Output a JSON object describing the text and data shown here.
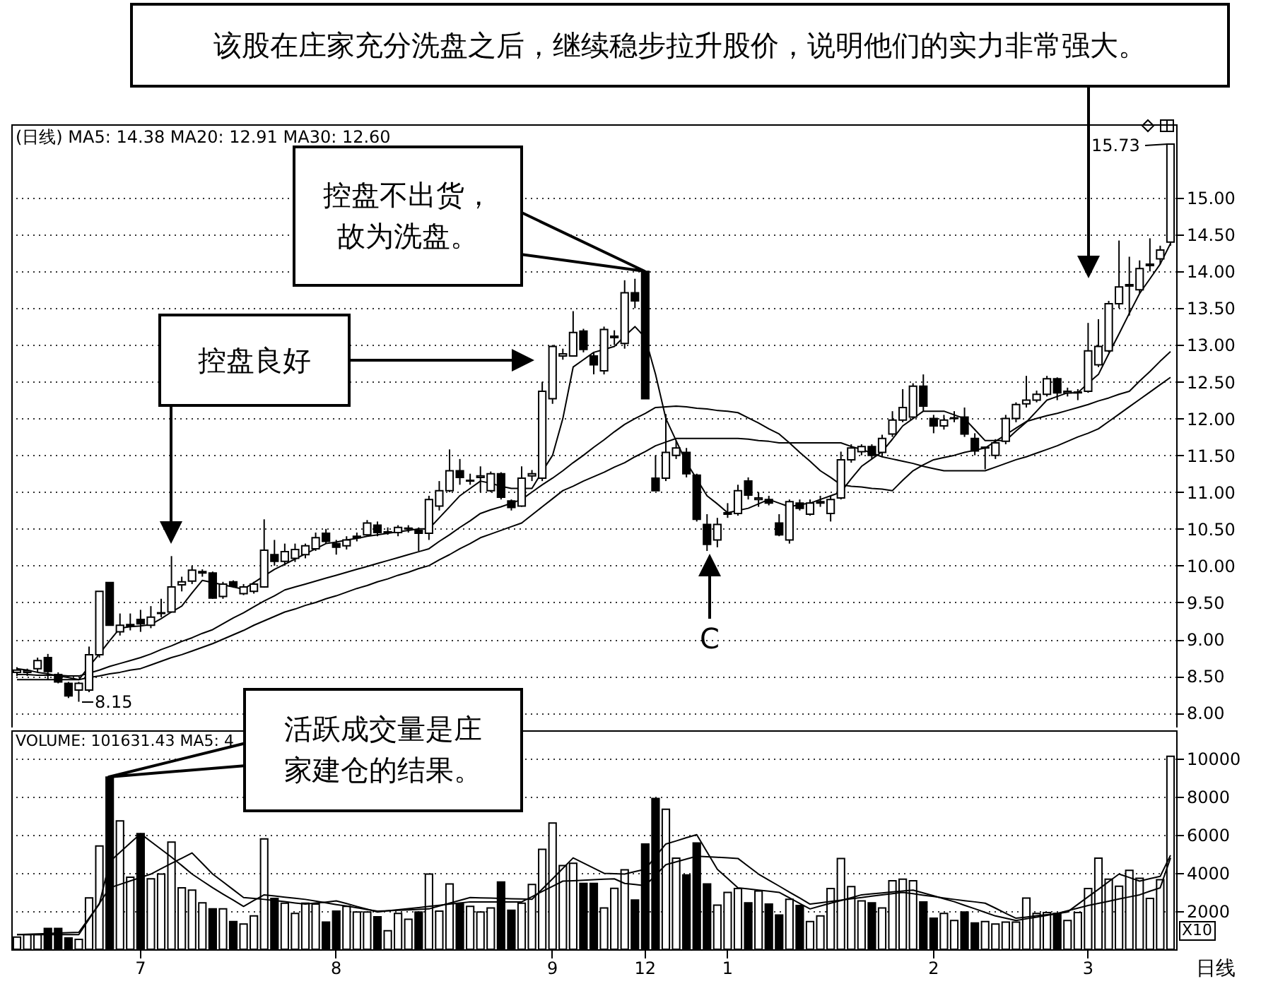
{
  "chart_data": [
    {
      "type": "candlestick",
      "title": "(日线) MA5: 14.38 MA20: 12.91 MA30: 12.60",
      "color": "#000000",
      "categories": [
        null,
        null,
        null,
        null,
        null,
        null,
        null,
        null,
        null,
        null,
        null,
        null,
        "7",
        null,
        null,
        null,
        null,
        null,
        null,
        null,
        null,
        null,
        null,
        null,
        null,
        null,
        null,
        null,
        null,
        null,
        null,
        "8",
        null,
        null,
        null,
        null,
        null,
        null,
        null,
        null,
        null,
        null,
        null,
        null,
        null,
        null,
        null,
        null,
        null,
        null,
        null,
        null,
        "9",
        null,
        null,
        null,
        null,
        null,
        null,
        null,
        null,
        "12",
        null,
        null,
        null,
        null,
        null,
        null,
        null,
        "1",
        null,
        null,
        null,
        null,
        null,
        null,
        null,
        null,
        null,
        null,
        null,
        null,
        null,
        null,
        null,
        null,
        null,
        null,
        null,
        "2",
        null,
        null,
        null,
        null,
        null,
        null,
        null,
        null,
        null,
        null,
        null,
        null,
        null,
        null,
        "3",
        null,
        null,
        null,
        null,
        null,
        null,
        null,
        null
      ],
      "tick_labels": "y",
      "ylim": [
        7.8,
        16.0
      ],
      "yticks": [
        {
          "value": 8,
          "label": "8.00"
        },
        {
          "value": 8.5,
          "label": "8.50"
        },
        {
          "value": 9,
          "label": "9.00"
        },
        {
          "value": 9.5,
          "label": "9.50"
        },
        {
          "value": 10,
          "label": "10.00"
        },
        {
          "value": 10.5,
          "label": "10.50"
        },
        {
          "value": 11,
          "label": "11.00"
        },
        {
          "value": 11.5,
          "label": "11.50"
        },
        {
          "value": 12,
          "label": "12.00"
        },
        {
          "value": 12.5,
          "label": "12.50"
        },
        {
          "value": 13,
          "label": "13.00"
        },
        {
          "value": 13.5,
          "label": "13.50"
        },
        {
          "value": 14,
          "label": "14.00"
        },
        {
          "value": 14.5,
          "label": "14.50"
        },
        {
          "value": 15,
          "label": "15.00"
        }
      ],
      "grid": "y",
      "ohlc": [
        [
          8.55,
          8.62,
          8.5,
          8.58
        ],
        [
          8.55,
          8.6,
          8.5,
          8.57
        ],
        [
          8.6,
          8.75,
          8.55,
          8.71
        ],
        [
          8.75,
          8.8,
          8.45,
          8.56
        ],
        [
          8.52,
          8.55,
          8.4,
          8.42
        ],
        [
          8.4,
          8.42,
          8.2,
          8.23
        ],
        [
          8.31,
          8.42,
          8.15,
          8.4
        ],
        [
          8.31,
          8.9,
          8.28,
          8.79
        ],
        [
          8.79,
          9.65,
          8.75,
          9.65
        ],
        [
          9.77,
          9.77,
          9.19,
          9.19
        ],
        [
          9.1,
          9.35,
          9.05,
          9.19
        ],
        [
          9.18,
          9.35,
          9.12,
          9.2
        ],
        [
          9.27,
          9.4,
          9.1,
          9.21
        ],
        [
          9.19,
          9.45,
          9.15,
          9.3
        ],
        [
          9.35,
          9.55,
          9.3,
          9.36
        ],
        [
          9.37,
          10.13,
          9.37,
          9.71
        ],
        [
          9.74,
          9.85,
          9.65,
          9.78
        ],
        [
          9.79,
          10.0,
          9.75,
          9.94
        ],
        [
          9.9,
          9.95,
          9.85,
          9.92
        ],
        [
          9.9,
          9.92,
          9.55,
          9.56
        ],
        [
          9.58,
          9.78,
          9.55,
          9.75
        ],
        [
          9.78,
          9.8,
          9.7,
          9.72
        ],
        [
          9.62,
          9.75,
          9.6,
          9.71
        ],
        [
          9.65,
          9.78,
          9.62,
          9.75
        ],
        [
          9.71,
          10.63,
          9.7,
          10.21
        ],
        [
          10.15,
          10.35,
          10.0,
          10.06
        ],
        [
          10.06,
          10.3,
          10.0,
          10.19
        ],
        [
          10.1,
          10.3,
          10.05,
          10.22
        ],
        [
          10.15,
          10.3,
          10.1,
          10.27
        ],
        [
          10.23,
          10.45,
          10.2,
          10.38
        ],
        [
          10.44,
          10.5,
          10.3,
          10.33
        ],
        [
          10.3,
          10.35,
          10.15,
          10.25
        ],
        [
          10.27,
          10.4,
          10.22,
          10.35
        ],
        [
          10.38,
          10.45,
          10.33,
          10.4
        ],
        [
          10.42,
          10.62,
          10.4,
          10.58
        ],
        [
          10.55,
          10.6,
          10.4,
          10.45
        ],
        [
          10.45,
          10.52,
          10.42,
          10.46
        ],
        [
          10.45,
          10.55,
          10.4,
          10.52
        ],
        [
          10.5,
          10.55,
          10.45,
          10.51
        ],
        [
          10.48,
          10.52,
          10.2,
          10.44
        ],
        [
          10.44,
          10.95,
          10.35,
          10.9
        ],
        [
          10.81,
          11.15,
          10.75,
          11.02
        ],
        [
          11.02,
          11.58,
          11.0,
          11.29
        ],
        [
          11.29,
          11.45,
          11.1,
          11.2
        ],
        [
          11.15,
          11.25,
          11.1,
          11.16
        ],
        [
          11.2,
          11.35,
          11.0,
          11.22
        ],
        [
          11.02,
          11.28,
          11.0,
          11.25
        ],
        [
          11.25,
          11.27,
          10.9,
          10.93
        ],
        [
          10.88,
          10.9,
          10.75,
          10.79
        ],
        [
          10.81,
          11.35,
          10.8,
          11.19
        ],
        [
          11.22,
          11.3,
          11.15,
          11.25
        ],
        [
          11.19,
          12.5,
          11.15,
          12.37
        ],
        [
          12.27,
          13.0,
          12.2,
          12.98
        ],
        [
          12.85,
          12.95,
          12.8,
          12.88
        ],
        [
          12.85,
          13.46,
          12.85,
          13.17
        ],
        [
          13.19,
          13.22,
          12.9,
          12.94
        ],
        [
          12.85,
          12.9,
          12.6,
          12.73
        ],
        [
          12.65,
          13.25,
          12.6,
          13.21
        ],
        [
          13.1,
          13.2,
          13.0,
          13.12
        ],
        [
          13.02,
          13.88,
          12.95,
          13.71
        ],
        [
          13.71,
          13.9,
          13.5,
          13.6
        ],
        [
          14.0,
          14.0,
          12.27,
          12.27
        ],
        [
          11.19,
          11.5,
          11.02,
          11.02
        ],
        [
          11.19,
          12.06,
          11.15,
          11.54
        ],
        [
          11.5,
          11.7,
          11.45,
          11.6
        ],
        [
          11.54,
          11.6,
          11.2,
          11.25
        ],
        [
          11.23,
          11.25,
          10.6,
          10.63
        ],
        [
          10.56,
          10.7,
          10.2,
          10.29
        ],
        [
          10.35,
          10.65,
          10.25,
          10.56
        ],
        [
          10.7,
          10.85,
          10.65,
          10.72
        ],
        [
          10.71,
          11.1,
          10.68,
          11.02
        ],
        [
          11.15,
          11.2,
          10.9,
          10.96
        ],
        [
          10.9,
          11.0,
          10.8,
          10.92
        ],
        [
          10.9,
          10.95,
          10.82,
          10.85
        ],
        [
          10.58,
          10.7,
          10.4,
          10.42
        ],
        [
          10.35,
          10.9,
          10.3,
          10.87
        ],
        [
          10.85,
          10.9,
          10.75,
          10.78
        ],
        [
          10.7,
          10.9,
          10.68,
          10.85
        ],
        [
          10.85,
          10.95,
          10.8,
          10.87
        ],
        [
          10.71,
          10.95,
          10.6,
          10.9
        ],
        [
          10.92,
          11.55,
          10.9,
          11.44
        ],
        [
          11.44,
          11.65,
          11.4,
          11.6
        ],
        [
          11.55,
          11.65,
          11.5,
          11.62
        ],
        [
          11.62,
          11.65,
          11.45,
          11.5
        ],
        [
          11.54,
          11.78,
          11.48,
          11.73
        ],
        [
          11.79,
          12.1,
          11.75,
          11.98
        ],
        [
          11.98,
          12.4,
          11.95,
          12.15
        ],
        [
          12.02,
          12.48,
          12.0,
          12.44
        ],
        [
          12.44,
          12.6,
          12.1,
          12.17
        ],
        [
          12.0,
          12.05,
          11.8,
          11.9
        ],
        [
          11.9,
          12.05,
          11.85,
          11.98
        ],
        [
          12.0,
          12.1,
          11.95,
          12.01
        ],
        [
          12.02,
          12.15,
          11.75,
          11.79
        ],
        [
          11.73,
          11.8,
          11.5,
          11.56
        ],
        [
          11.6,
          11.62,
          11.31,
          11.61
        ],
        [
          11.5,
          11.72,
          11.45,
          11.67
        ],
        [
          11.69,
          12.05,
          11.65,
          12.0
        ],
        [
          12.0,
          12.22,
          11.95,
          12.19
        ],
        [
          12.2,
          12.58,
          12.15,
          12.25
        ],
        [
          12.25,
          12.38,
          12.22,
          12.33
        ],
        [
          12.33,
          12.58,
          12.3,
          12.54
        ],
        [
          12.54,
          12.56,
          12.25,
          12.35
        ],
        [
          12.35,
          12.42,
          12.3,
          12.37
        ],
        [
          12.35,
          12.4,
          12.25,
          12.36
        ],
        [
          12.37,
          13.3,
          12.35,
          12.92
        ],
        [
          12.73,
          13.35,
          12.7,
          12.98
        ],
        [
          12.92,
          13.6,
          12.9,
          13.56
        ],
        [
          13.56,
          14.42,
          13.5,
          13.79
        ],
        [
          13.8,
          14.2,
          13.4,
          13.82
        ],
        [
          13.75,
          14.15,
          13.7,
          14.04
        ],
        [
          14.08,
          14.45,
          14.0,
          14.1
        ],
        [
          14.17,
          14.35,
          14.1,
          14.29
        ],
        [
          14.4,
          15.73,
          14.35,
          15.73
        ]
      ],
      "series": [
        {
          "type": "line",
          "color": "#000000",
          "values": [
            8.6,
            8.58,
            8.55,
            8.53,
            8.5,
            8.48,
            8.45,
            8.63,
            8.8,
            8.98,
            9.15,
            9.17,
            9.18,
            9.2,
            9.28,
            9.37,
            9.45,
            9.63,
            9.8,
            9.77,
            9.74,
            9.71,
            9.68,
            9.77,
            9.86,
            9.95,
            10.02,
            10.09,
            10.16,
            10.23,
            10.3,
            10.32,
            10.35,
            10.37,
            10.4,
            10.42,
            10.44,
            10.46,
            10.48,
            10.5,
            10.5,
            10.65,
            10.8,
            10.95,
            11.05,
            11.15,
            11.12,
            11.08,
            11.05,
            11.05,
            11.05,
            11.28,
            11.5,
            12.0,
            12.7,
            12.8,
            12.9,
            12.94,
            12.98,
            13.12,
            13.25,
            13.1,
            12.6,
            12.0,
            11.7,
            11.4,
            11.18,
            10.95,
            10.84,
            10.72,
            10.75,
            10.78,
            10.84,
            10.9,
            10.85,
            10.8,
            10.83,
            10.85,
            10.9,
            10.95,
            11.0,
            11.18,
            11.35,
            11.45,
            11.55,
            11.72,
            11.9,
            12.0,
            12.1,
            12.1,
            12.1,
            12.05,
            12.0,
            11.85,
            11.7,
            11.7,
            11.7,
            11.83,
            11.95,
            12.1,
            12.25,
            12.3,
            12.35,
            12.35,
            12.48,
            12.6,
            12.88,
            13.15,
            13.43,
            13.7,
            13.9,
            14.1,
            14.38
          ]
        },
        {
          "type": "line",
          "color": "#000000",
          "values": [
            8.52,
            8.52,
            8.51,
            8.51,
            8.51,
            8.5,
            8.5,
            8.54,
            8.58,
            8.63,
            8.67,
            8.71,
            8.75,
            8.8,
            8.86,
            8.91,
            8.97,
            9.02,
            9.08,
            9.13,
            9.21,
            9.29,
            9.36,
            9.44,
            9.52,
            9.59,
            9.67,
            9.71,
            9.75,
            9.79,
            9.83,
            9.87,
            9.91,
            9.95,
            9.99,
            10.03,
            10.07,
            10.11,
            10.15,
            10.19,
            10.23,
            10.33,
            10.42,
            10.52,
            10.61,
            10.71,
            10.76,
            10.8,
            10.85,
            10.9,
            11.0,
            11.1,
            11.19,
            11.29,
            11.4,
            11.5,
            11.61,
            11.71,
            11.82,
            11.92,
            12.0,
            12.07,
            12.15,
            12.16,
            12.17,
            12.16,
            12.14,
            12.13,
            12.11,
            12.1,
            12.08,
            12.01,
            11.94,
            11.86,
            11.79,
            11.67,
            11.54,
            11.42,
            11.29,
            11.2,
            11.1,
            11.08,
            11.07,
            11.05,
            11.04,
            11.02,
            11.16,
            11.29,
            11.37,
            11.44,
            11.47,
            11.5,
            11.54,
            11.57,
            11.6,
            11.69,
            11.78,
            11.87,
            11.96,
            12.0,
            12.04,
            12.07,
            12.11,
            12.15,
            12.19,
            12.24,
            12.28,
            12.33,
            12.37,
            12.51,
            12.64,
            12.78,
            12.91
          ]
        },
        {
          "type": "line",
          "color": "#000000",
          "values": [
            8.45,
            8.45,
            8.45,
            8.45,
            8.45,
            8.45,
            8.45,
            8.48,
            8.5,
            8.53,
            8.55,
            8.58,
            8.6,
            8.65,
            8.7,
            8.75,
            8.79,
            8.84,
            8.89,
            8.94,
            9.0,
            9.06,
            9.12,
            9.19,
            9.25,
            9.31,
            9.37,
            9.41,
            9.46,
            9.5,
            9.55,
            9.59,
            9.64,
            9.69,
            9.73,
            9.78,
            9.82,
            9.87,
            9.91,
            9.96,
            10.0,
            10.08,
            10.15,
            10.23,
            10.3,
            10.38,
            10.43,
            10.48,
            10.53,
            10.58,
            10.69,
            10.8,
            10.91,
            11.02,
            11.08,
            11.15,
            11.21,
            11.27,
            11.34,
            11.4,
            11.48,
            11.55,
            11.63,
            11.68,
            11.73,
            11.73,
            11.73,
            11.73,
            11.73,
            11.73,
            11.73,
            11.72,
            11.7,
            11.69,
            11.67,
            11.67,
            11.67,
            11.67,
            11.67,
            11.67,
            11.67,
            11.62,
            11.58,
            11.53,
            11.48,
            11.45,
            11.42,
            11.39,
            11.35,
            11.32,
            11.29,
            11.29,
            11.29,
            11.29,
            11.29,
            11.34,
            11.39,
            11.44,
            11.48,
            11.53,
            11.58,
            11.63,
            11.69,
            11.75,
            11.8,
            11.86,
            11.96,
            12.06,
            12.16,
            12.26,
            12.36,
            12.46,
            12.56
          ]
        }
      ],
      "annotations": [
        "该股在庄家充分洗盘之后，继续稳步拉升股价，说明他们的实力非常强大。",
        "控盘不出货，故为洗盘。",
        "控盘良好",
        "C",
        "15.73",
        "8.15"
      ]
    },
    {
      "type": "bar",
      "title": "VOLUME: 101631.43 MA5: 4",
      "categories": [
        null,
        null,
        null,
        null,
        null,
        null,
        null,
        null,
        null,
        null,
        null,
        null,
        "7",
        null,
        null,
        null,
        null,
        null,
        null,
        null,
        null,
        null,
        null,
        null,
        null,
        null,
        null,
        null,
        null,
        null,
        null,
        "8",
        null,
        null,
        null,
        null,
        null,
        null,
        null,
        null,
        null,
        null,
        null,
        null,
        null,
        null,
        null,
        null,
        null,
        null,
        null,
        null,
        "9",
        null,
        null,
        null,
        null,
        null,
        null,
        null,
        null,
        "12",
        null,
        null,
        null,
        null,
        null,
        null,
        null,
        "1",
        null,
        null,
        null,
        null,
        null,
        null,
        null,
        null,
        null,
        null,
        null,
        null,
        null,
        null,
        null,
        null,
        null,
        null,
        null,
        "2",
        null,
        null,
        null,
        null,
        null,
        null,
        null,
        null,
        null,
        null,
        null,
        null,
        null,
        null,
        "3",
        null,
        null,
        null,
        null,
        null,
        null,
        null,
        null
      ],
      "ylim": [
        0,
        11500
      ],
      "yticks": [
        2000,
        4000,
        6000,
        8000,
        10000
      ],
      "grid": "y",
      "values": [
        640,
        770,
        770,
        1090,
        1090,
        590,
        520,
        2700,
        5430,
        9040,
        6740,
        3780,
        6070,
        3700,
        3950,
        5630,
        3230,
        3110,
        2440,
        2120,
        2120,
        1460,
        1330,
        1750,
        5800,
        2670,
        2420,
        1880,
        2420,
        2370,
        1430,
        2000,
        2250,
        1960,
        1960,
        1710,
        970,
        1880,
        1580,
        1960,
        3950,
        2000,
        3430,
        2370,
        2250,
        1960,
        2170,
        3530,
        2050,
        2420,
        3400,
        5250,
        6630,
        4400,
        4520,
        3460,
        3460,
        2170,
        3200,
        4170,
        2590,
        5530,
        7920,
        7350,
        4790,
        3900,
        5580,
        3430,
        2320,
        2990,
        3190,
        2440,
        3060,
        2370,
        1800,
        2620,
        2300,
        1460,
        1750,
        3190,
        4770,
        3290,
        2540,
        2440,
        2170,
        3600,
        3680,
        3600,
        2490,
        1630,
        1880,
        1510,
        1960,
        1380,
        1460,
        1330,
        1430,
        1430,
        2690,
        1880,
        1930,
        1880,
        1510,
        1930,
        3190,
        4790,
        3680,
        3310,
        4150,
        3730,
        2670,
        3650,
        10140
      ],
      "colors": [
        "#ffffff",
        "#ffffff",
        "#ffffff",
        "#000000",
        "#000000",
        "#000000",
        "#ffffff",
        "#ffffff",
        "#ffffff",
        "#000000",
        "#ffffff",
        "#ffffff",
        "#000000",
        "#ffffff",
        "#ffffff",
        "#ffffff",
        "#ffffff",
        "#ffffff",
        "#ffffff",
        "#000000",
        "#ffffff",
        "#000000",
        "#ffffff",
        "#ffffff",
        "#ffffff",
        "#000000",
        "#ffffff",
        "#ffffff",
        "#ffffff",
        "#ffffff",
        "#000000",
        "#000000",
        "#ffffff",
        "#ffffff",
        "#ffffff",
        "#000000",
        "#ffffff",
        "#ffffff",
        "#ffffff",
        "#000000",
        "#ffffff",
        "#ffffff",
        "#ffffff",
        "#000000",
        "#ffffff",
        "#ffffff",
        "#ffffff",
        "#000000",
        "#000000",
        "#ffffff",
        "#ffffff",
        "#ffffff",
        "#ffffff",
        "#ffffff",
        "#ffffff",
        "#000000",
        "#000000",
        "#ffffff",
        "#ffffff",
        "#ffffff",
        "#000000",
        "#000000",
        "#000000",
        "#ffffff",
        "#ffffff",
        "#000000",
        "#000000",
        "#000000",
        "#ffffff",
        "#ffffff",
        "#ffffff",
        "#000000",
        "#ffffff",
        "#000000",
        "#000000",
        "#ffffff",
        "#000000",
        "#ffffff",
        "#ffffff",
        "#ffffff",
        "#ffffff",
        "#ffffff",
        "#ffffff",
        "#000000",
        "#ffffff",
        "#ffffff",
        "#ffffff",
        "#ffffff",
        "#000000",
        "#000000",
        "#ffffff",
        "#ffffff",
        "#000000",
        "#000000",
        "#ffffff",
        "#ffffff",
        "#ffffff",
        "#ffffff",
        "#ffffff",
        "#ffffff",
        "#ffffff",
        "#000000",
        "#ffffff",
        "#ffffff",
        "#ffffff",
        "#ffffff",
        "#ffffff",
        "#ffffff",
        "#ffffff",
        "#ffffff",
        "#ffffff",
        "#ffffff",
        "#ffffff"
      ],
      "series": [
        {
          "type": "line",
          "color": "#000000",
          "values": [
            770,
            790,
            810,
            830,
            850,
            870,
            890,
            1640,
            2380,
            4600,
            5090,
            5580,
            6070,
            5660,
            5250,
            4840,
            4400,
            3950,
            3590,
            3230,
            2900,
            2580,
            2250,
            2560,
            2860,
            2800,
            2740,
            2680,
            2620,
            2530,
            2440,
            2350,
            2270,
            2180,
            2090,
            2000,
            2020,
            2050,
            2070,
            2100,
            2120,
            2270,
            2420,
            2570,
            2720,
            2700,
            2690,
            2670,
            2650,
            2640,
            2620,
            3160,
            3700,
            4250,
            4800,
            4530,
            4260,
            3990,
            3970,
            3950,
            4080,
            4200,
            4870,
            5530,
            5690,
            5860,
            6020,
            5110,
            4200,
            3720,
            3230,
            3170,
            3110,
            3050,
            2990,
            2700,
            2410,
            2120,
            2270,
            2420,
            2560,
            2710,
            2860,
            2910,
            2960,
            3010,
            3060,
            3110,
            2960,
            2810,
            2650,
            2500,
            2310,
            2130,
            1940,
            1750,
            1630,
            1510,
            1600,
            1690,
            1780,
            1870,
            1960,
            2360,
            2760,
            3150,
            3550,
            3950,
            3770,
            3580,
            3710,
            3830,
            4940
          ]
        },
        {
          "type": "line",
          "color": "#000000",
          "values": [
            770,
            770,
            770,
            770,
            770,
            770,
            770,
            1590,
            2410,
            3230,
            3410,
            3590,
            3770,
            3950,
            4230,
            4510,
            4780,
            5060,
            4510,
            3950,
            3540,
            3130,
            2720,
            2670,
            2620,
            2560,
            2500,
            2430,
            2370,
            2430,
            2480,
            2540,
            2400,
            2250,
            2110,
            1960,
            2020,
            2080,
            2130,
            2190,
            2250,
            2310,
            2370,
            2430,
            2490,
            2490,
            2490,
            2490,
            2490,
            2490,
            2760,
            3040,
            3310,
            3580,
            3600,
            3630,
            3650,
            3680,
            3700,
            3460,
            3400,
            3340,
            3890,
            4440,
            4590,
            4740,
            4890,
            4860,
            4830,
            4800,
            4770,
            4360,
            3950,
            3630,
            3320,
            3000,
            2690,
            2370,
            2440,
            2510,
            2580,
            2650,
            2720,
            2790,
            2860,
            2920,
            2990,
            2920,
            2840,
            2770,
            2690,
            2620,
            2550,
            2490,
            2420,
            2160,
            1890,
            1630,
            1690,
            1760,
            1820,
            1880,
            2020,
            2160,
            2300,
            2410,
            2520,
            2640,
            2750,
            2860,
            3050,
            3230,
            4800
          ]
        }
      ],
      "annotations": [
        "活跃成交量是庄家建仓的结果。",
        "X10",
        "日线"
      ]
    }
  ]
}
